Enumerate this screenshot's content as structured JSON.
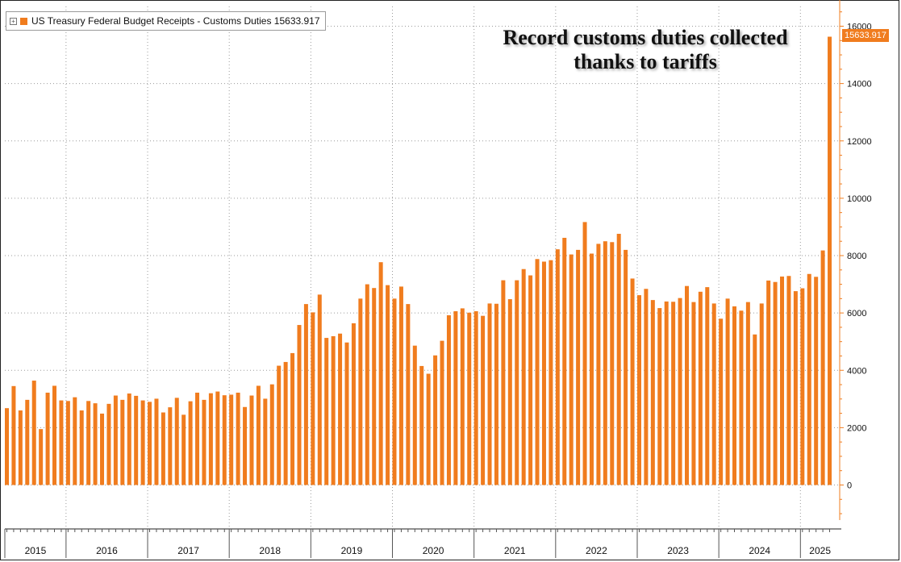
{
  "legend": {
    "label": "US Treasury Federal Budget Receipts - Customs Duties",
    "value": "15633.917",
    "expand_icon": "plus-box-icon"
  },
  "annotation": {
    "line1": "Record customs duties collected",
    "line2": "thanks to tariffs"
  },
  "last_value_label": "15633.917",
  "colors": {
    "bar": "#f07c1e",
    "axis": "#f07c1e",
    "grid": "#9a9a9a",
    "text": "#111111"
  },
  "chart_data": {
    "type": "bar",
    "title": "",
    "xlabel": "",
    "ylabel": "",
    "ylim": [
      -1000,
      16500
    ],
    "yticks": [
      0,
      2000,
      4000,
      6000,
      8000,
      10000,
      12000,
      14000,
      16000
    ],
    "ytick_labels": [
      "0",
      "2000",
      "4000",
      "6000",
      "8000",
      "10000",
      "12000",
      "14000",
      "16000"
    ],
    "year_labels": [
      "2015",
      "2016",
      "2017",
      "2018",
      "2019",
      "2020",
      "2021",
      "2022",
      "2023",
      "2024",
      "2025"
    ],
    "grid": true,
    "legend_position": "top-left",
    "series": [
      {
        "name": "US Treasury Federal Budget Receipts - Customs Duties",
        "values": [
          2680,
          3450,
          2600,
          2970,
          3640,
          1950,
          3220,
          3460,
          2950,
          2930,
          3060,
          2600,
          2930,
          2850,
          2490,
          2830,
          3120,
          2970,
          3190,
          3110,
          2950,
          2900,
          3010,
          2530,
          2710,
          3040,
          2450,
          2920,
          3220,
          2970,
          3200,
          3260,
          3130,
          3150,
          3220,
          2720,
          3120,
          3460,
          3010,
          3510,
          4160,
          4290,
          4600,
          5580,
          6310,
          6020,
          6640,
          5130,
          5190,
          5280,
          4970,
          5640,
          6500,
          7000,
          6870,
          7770,
          6970,
          6500,
          6920,
          6310,
          4860,
          4150,
          3880,
          4520,
          5030,
          5920,
          6060,
          6160,
          6010,
          6060,
          5900,
          6330,
          6320,
          7140,
          6480,
          7140,
          7530,
          7310,
          7880,
          7790,
          7840,
          8220,
          8620,
          8040,
          8200,
          9170,
          8070,
          8410,
          8500,
          8470,
          8760,
          8200,
          7200,
          6620,
          6840,
          6450,
          6170,
          6400,
          6390,
          6520,
          6940,
          6380,
          6740,
          6900,
          6330,
          5800,
          6500,
          6230,
          6080,
          6380,
          5250,
          6330,
          7130,
          7080,
          7270,
          7290,
          6760,
          6860,
          7360,
          7260,
          8180,
          15633.917
        ]
      }
    ]
  }
}
